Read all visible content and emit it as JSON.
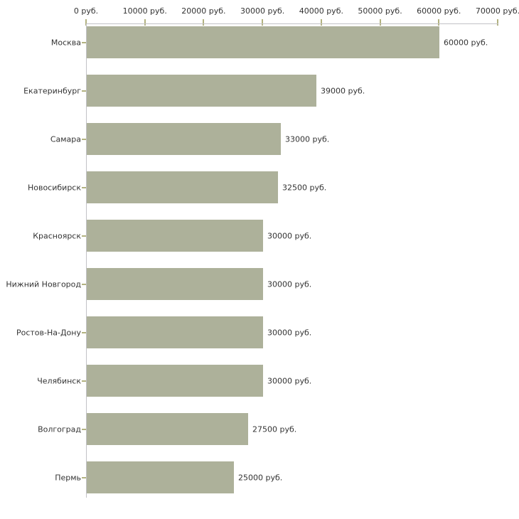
{
  "chart_data": {
    "type": "bar",
    "orientation": "horizontal",
    "title": "",
    "categories": [
      "Москва",
      "Екатеринбург",
      "Самара",
      "Новосибирск",
      "Красноярск",
      "Нижний Новгород",
      "Ростов-На-Дону",
      "Челябинск",
      "Волгоград",
      "Пермь"
    ],
    "values": [
      60000,
      39000,
      33000,
      32500,
      30000,
      30000,
      30000,
      30000,
      27500,
      25000
    ],
    "bar_labels": [
      "60000 руб.",
      "39000 руб.",
      "33000 руб.",
      "32500 руб.",
      "30000 руб.",
      "30000 руб.",
      "30000 руб.",
      "30000 руб.",
      "27500 руб.",
      "25000 руб."
    ],
    "x_axis": {
      "position": "top",
      "xlim": [
        0,
        70000
      ],
      "ticks": [
        0,
        10000,
        20000,
        30000,
        40000,
        50000,
        60000,
        70000
      ],
      "tick_labels": [
        "0 руб.",
        "10000 руб.",
        "20000 руб.",
        "30000 руб.",
        "40000 руб.",
        "50000 руб.",
        "60000 руб.",
        "70000 руб."
      ]
    },
    "ylabel": "",
    "xlabel": "",
    "grid": false,
    "legend": null,
    "colors": {
      "bar_fill": "#adb19a",
      "axis_line": "#c2c2c6",
      "tick_mark": "#b2b280",
      "text": "#333333",
      "background": "#ffffff"
    }
  }
}
